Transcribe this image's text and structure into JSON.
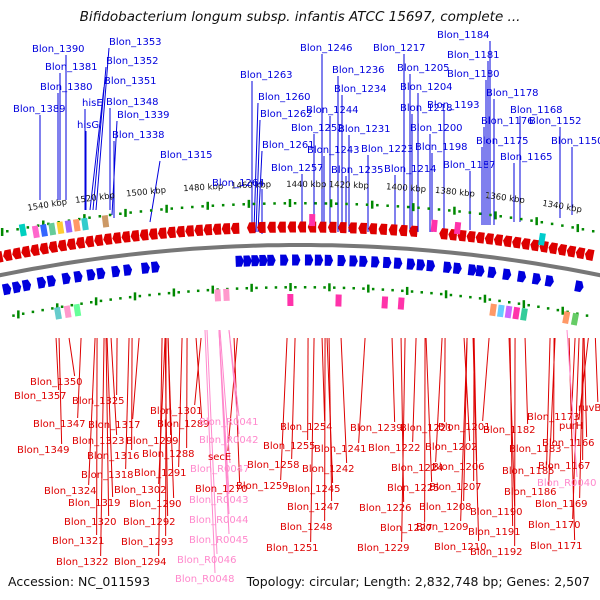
{
  "title": "Bifidobacterium longum subsp. infantis ATCC 15697, complete ...",
  "accession": "Accession: NC_011593",
  "topology": "Topology: circular; Length: 2,832,748 bp; Genes: 2,507",
  "colors": {
    "forward_gene": "#0000dd",
    "reverse_gene": "#dd0000",
    "rna": "#ff88cc",
    "backbone": "#777777",
    "tick": "#008800"
  },
  "scale_labels": [
    "1540 kbp",
    "1520 kbp",
    "1500 kbp",
    "1480 kbp",
    "1460 kbp",
    "1440 kbp",
    "1420 kbp",
    "1400 kbp",
    "1380 kbp",
    "1360 kbp",
    "1340 kbp"
  ],
  "top_labels": [
    "Blon_1390",
    "Blon_1381",
    "Blon_1380",
    "Blon_1389",
    "Blon_1353",
    "Blon_1352",
    "Blon_1351",
    "hisE",
    "hisG",
    "Blon_1348",
    "Blon_1339",
    "Blon_1338",
    "Blon_1315",
    "Blon_1263",
    "Blon_1260",
    "Blon_1262",
    "Blon_1261",
    "Blon_1264",
    "Blon_1246",
    "Blon_1236",
    "Blon_1234",
    "Blon_1244",
    "Blon_1252",
    "Blon_1243",
    "Blon_1257",
    "Blon_1231",
    "Blon_1235",
    "Blon_1223",
    "Blon_1217",
    "Blon_1205",
    "Blon_1204",
    "Blon_1218",
    "Blon_1214",
    "Blon_1200",
    "Blon_1198",
    "Blon_1193",
    "Blon_1184",
    "Blon_1181",
    "Blon_1180",
    "Blon_1178",
    "Blon_1176",
    "Blon_1175",
    "Blon_1187",
    "Blon_1168",
    "Blon_1152",
    "Blon_1150",
    "Blon_1165"
  ],
  "bottom_labels": [
    "Blon_1350",
    "Blon_1357",
    "Blon_1325",
    "Blon_1347",
    "Blon_1317",
    "Blon_1323",
    "Blon_1349",
    "Blon_1316",
    "Blon_1318",
    "Blon_1324",
    "Blon_1319",
    "Blon_1320",
    "Blon_1321",
    "Blon_1322",
    "Blon_1301",
    "Blon_1289",
    "Blon_1299",
    "Blon_1288",
    "Blon_1291",
    "Blon_1302",
    "Blon_1290",
    "Blon_1292",
    "Blon_1293",
    "Blon_1294",
    "secE",
    "Blon_1270",
    "Blon_1254",
    "Blon_1255",
    "Blon_1258",
    "Blon_1259",
    "Blon_1245",
    "Blon_1247",
    "Blon_1248",
    "Blon_1251",
    "Blon_1241",
    "Blon_1242",
    "Blon_1239",
    "Blon_1221",
    "Blon_1222",
    "Blon_1224",
    "Blon_1225",
    "Blon_1226",
    "Blon_1227",
    "Blon_1229",
    "Blon_1201",
    "Blon_1202",
    "Blon_1206",
    "Blon_1207",
    "Blon_1208",
    "Blon_1209",
    "Blon_1210",
    "Blon_1182",
    "Blon_1183",
    "Blon_1185",
    "Blon_1186",
    "Blon_1190",
    "Blon_1191",
    "Blon_1192",
    "Blon_1173",
    "purH",
    "ruvB",
    "Blon_1166",
    "Blon_1167",
    "Blon_1169",
    "Blon_1170",
    "Blon_1171"
  ],
  "rna_labels": [
    "Blon_R0041",
    "Blon_R0042",
    "Blon_R0047",
    "Blon_R0043",
    "Blon_R0044",
    "Blon_R0045",
    "Blon_R0046",
    "Blon_R0048",
    "Blon_R0040"
  ]
}
